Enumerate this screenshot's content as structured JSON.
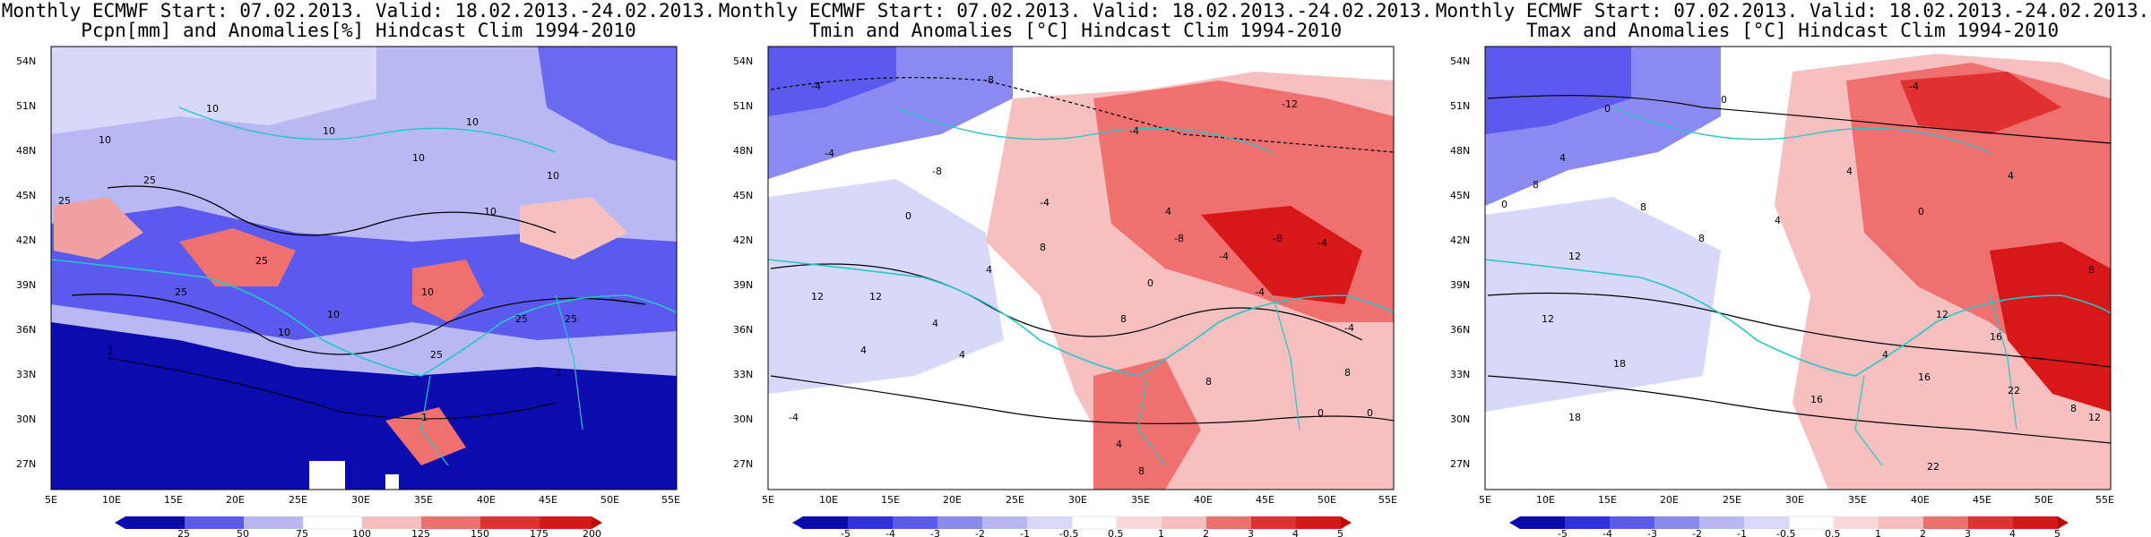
{
  "panels": [
    {
      "title1": "Monthly ECMWF Start: 07.02.2013. Valid: 18.02.2013.-24.02.2013.",
      "title2": "Pcpn[mm] and Anomalies[%] Hindcast Clim 1994-2010",
      "colorbar": [
        "25",
        "50",
        "75",
        "100",
        "125",
        "150",
        "175",
        "200"
      ],
      "contour_labels": [
        "10",
        "25",
        "10",
        "10",
        "25",
        "10",
        "10",
        "25",
        "10",
        "10",
        "25",
        "1",
        "1",
        "10",
        "1",
        "10",
        "25",
        "10",
        "25",
        "25"
      ]
    },
    {
      "title1": "Monthly ECMWF Start: 07.02.2013. Valid: 18.02.2013.-24.02.2013.",
      "title2": "Tmin and Anomalies [°C] Hindcast Clim 1994-2010",
      "colorbar": [
        "-5",
        "-4",
        "-3",
        "-2",
        "-1",
        "-0.5",
        "0.5",
        "1",
        "2",
        "3",
        "4",
        "5"
      ],
      "contour_labels": [
        "-4",
        "-8",
        "-12",
        "-4",
        "-8",
        "-4",
        "0",
        "-4",
        "-8",
        "-4",
        "4",
        "-4",
        "0",
        "-8",
        "-4",
        "8",
        "4",
        "12",
        "4",
        "4",
        "8",
        "0",
        "8",
        "-4",
        "12",
        "-4",
        "8",
        "4",
        "0",
        "4",
        "8"
      ]
    },
    {
      "title1": "Monthly ECMWF Start: 07.02.2013. Valid: 18.02.2013.-24.02.2013.",
      "title2": "Tmax and Anomalies [°C] Hindcast Clim 1994-2010",
      "colorbar": [
        "-5",
        "-4",
        "-3",
        "-2",
        "-1",
        "-0.5",
        "0.5",
        "1",
        "2",
        "3",
        "4",
        "5"
      ],
      "contour_labels": [
        "-4",
        "0",
        "0",
        "0",
        "4",
        "4",
        "8",
        "4",
        "8",
        "0",
        "4",
        "8",
        "12",
        "12",
        "8",
        "12",
        "4",
        "16",
        "18",
        "16",
        "22",
        "18",
        "22",
        "12",
        "8",
        "16"
      ]
    }
  ],
  "axes": {
    "lat": [
      "54N",
      "51N",
      "48N",
      "45N",
      "42N",
      "39N",
      "36N",
      "33N",
      "30N",
      "27N"
    ],
    "lon": [
      "5E",
      "10E",
      "15E",
      "20E",
      "25E",
      "30E",
      "35E",
      "40E",
      "45E",
      "50E",
      "55E"
    ]
  },
  "colors": {
    "blue_deep": "#0b0bb0",
    "blue_mid": "#5a5aee",
    "blue_light": "#b8b8f5",
    "white": "#ffffff",
    "red_light": "#f7c0c0",
    "red_mid": "#f07070",
    "red_deep": "#d81818",
    "borders": "#27c6c6"
  }
}
